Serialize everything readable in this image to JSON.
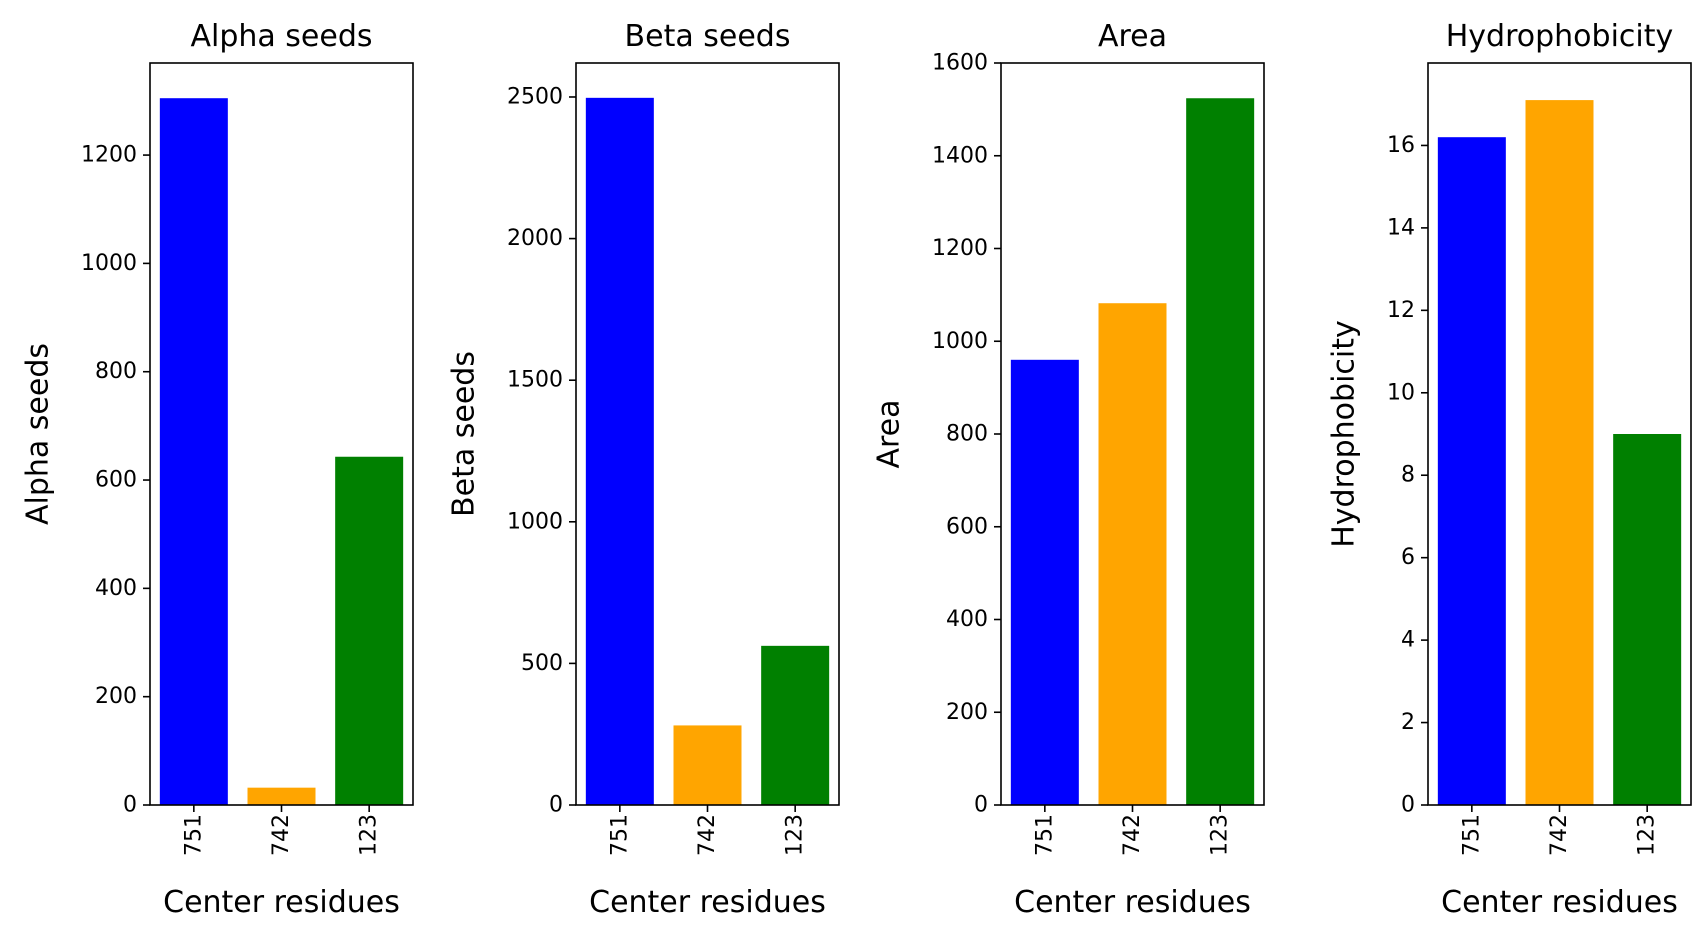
{
  "figure": {
    "background": "#ffffff"
  },
  "chart_data": [
    {
      "type": "bar",
      "title": "Alpha seeds",
      "xlabel": "Center residues",
      "ylabel": "Alpha seeds",
      "categories": [
        "751",
        "742",
        "123"
      ],
      "values": [
        1305,
        32,
        643
      ],
      "colors": [
        "#0000ff",
        "#ffa500",
        "#008000"
      ],
      "ylim": [
        0,
        1370
      ],
      "yticks": [
        0,
        200,
        400,
        600,
        800,
        1000,
        1200
      ],
      "grid": false
    },
    {
      "type": "bar",
      "title": "Beta seeds",
      "xlabel": "Center residues",
      "ylabel": "Beta seeds",
      "categories": [
        "751",
        "742",
        "123"
      ],
      "values": [
        2497,
        281,
        562
      ],
      "colors": [
        "#0000ff",
        "#ffa500",
        "#008000"
      ],
      "ylim": [
        0,
        2620
      ],
      "yticks": [
        0,
        500,
        1000,
        1500,
        2000,
        2500
      ],
      "grid": false
    },
    {
      "type": "bar",
      "title": "Area",
      "xlabel": "Center residues",
      "ylabel": "Area",
      "categories": [
        "751",
        "742",
        "123"
      ],
      "values": [
        960,
        1082,
        1524
      ],
      "colors": [
        "#0000ff",
        "#ffa500",
        "#008000"
      ],
      "ylim": [
        0,
        1600
      ],
      "yticks": [
        0,
        200,
        400,
        600,
        800,
        1000,
        1200,
        1400,
        1600
      ],
      "grid": false
    },
    {
      "type": "bar",
      "title": "Hydrophobicity",
      "xlabel": "Center residues",
      "ylabel": "Hydrophobicity",
      "categories": [
        "751",
        "742",
        "123"
      ],
      "values": [
        16.2,
        17.1,
        9.0
      ],
      "colors": [
        "#0000ff",
        "#ffa500",
        "#008000"
      ],
      "ylim": [
        0,
        18
      ],
      "yticks": [
        0,
        2,
        4,
        6,
        8,
        10,
        12,
        14,
        16
      ],
      "grid": false
    }
  ]
}
